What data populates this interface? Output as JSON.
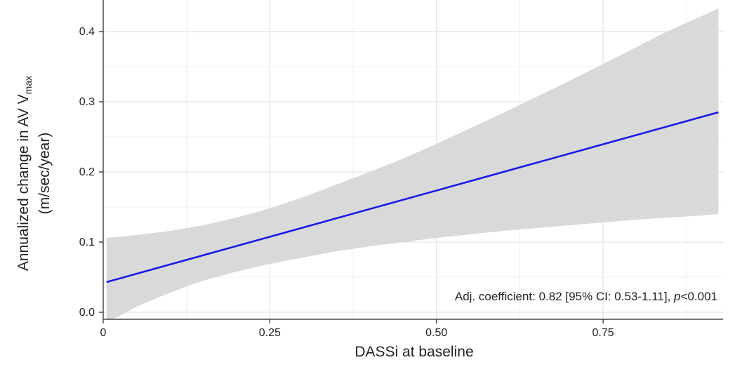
{
  "chart_data": {
    "type": "line",
    "title": "",
    "xlabel": "DASSi at baseline",
    "ylabel_line1_main": "Annualized change in AV V",
    "ylabel_line1_sub": "max",
    "ylabel_line2": "(m/sec/year)",
    "xlim": [
      0,
      0.93
    ],
    "ylim": [
      -0.01,
      0.445
    ],
    "x_ticks": [
      {
        "value": 0,
        "label": "0"
      },
      {
        "value": 0.25,
        "label": "0.25"
      },
      {
        "value": 0.5,
        "label": "0.50"
      },
      {
        "value": 0.75,
        "label": "0.75"
      }
    ],
    "y_ticks": [
      {
        "value": 0.0,
        "label": "0.0"
      },
      {
        "value": 0.1,
        "label": "0.1"
      },
      {
        "value": 0.2,
        "label": "0.2"
      },
      {
        "value": 0.3,
        "label": "0.3"
      },
      {
        "value": 0.4,
        "label": "0.4"
      }
    ],
    "grid": true,
    "line_color": "#1a1ae6",
    "band_color": "#d9d9d9",
    "series": [
      {
        "x": [
          0.005,
          0.923
        ],
        "y": [
          0.043,
          0.285
        ]
      }
    ],
    "confidence_band": {
      "x": [
        0.005,
        0.05,
        0.1,
        0.15,
        0.2,
        0.25,
        0.3,
        0.35,
        0.4,
        0.45,
        0.5,
        0.55,
        0.6,
        0.65,
        0.7,
        0.75,
        0.8,
        0.85,
        0.9,
        0.923
      ],
      "upper": [
        0.106,
        0.11,
        0.116,
        0.124,
        0.135,
        0.148,
        0.164,
        0.182,
        0.2,
        0.219,
        0.24,
        0.262,
        0.284,
        0.307,
        0.33,
        0.354,
        0.378,
        0.402,
        0.423,
        0.433
      ],
      "lower": [
        -0.015,
        0.008,
        0.028,
        0.045,
        0.058,
        0.069,
        0.078,
        0.087,
        0.094,
        0.1,
        0.106,
        0.111,
        0.116,
        0.12,
        0.124,
        0.128,
        0.132,
        0.135,
        0.138,
        0.14
      ]
    },
    "annotation": {
      "prefix": "Adj. coefficient: 0.82 [95% CI: 0.53-1.11], ",
      "italic": "p",
      "suffix": "<0.001"
    }
  }
}
